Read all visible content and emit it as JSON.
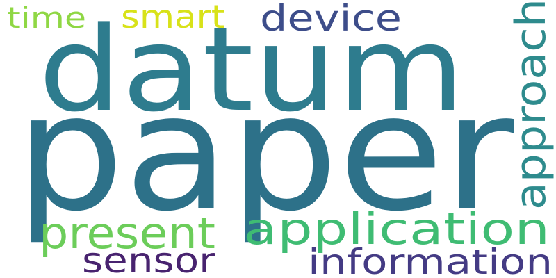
{
  "words": [
    {
      "key": "paper",
      "text": "paper",
      "color": "#2d7189"
    },
    {
      "key": "datum",
      "text": "datum",
      "color": "#2e7c8e"
    },
    {
      "key": "application",
      "text": "application",
      "color": "#3fbc73"
    },
    {
      "key": "approach",
      "text": "approach",
      "color": "#2e8b8d"
    },
    {
      "key": "present",
      "text": "present",
      "color": "#6ccd5a"
    },
    {
      "key": "information",
      "text": "information",
      "color": "#443b84"
    },
    {
      "key": "device",
      "text": "device",
      "color": "#3d4d8a"
    },
    {
      "key": "sensor",
      "text": "sensor",
      "color": "#48236f"
    },
    {
      "key": "smart",
      "text": "smart",
      "color": "#d8e219"
    },
    {
      "key": "time",
      "text": "time",
      "color": "#8fd744"
    }
  ]
}
